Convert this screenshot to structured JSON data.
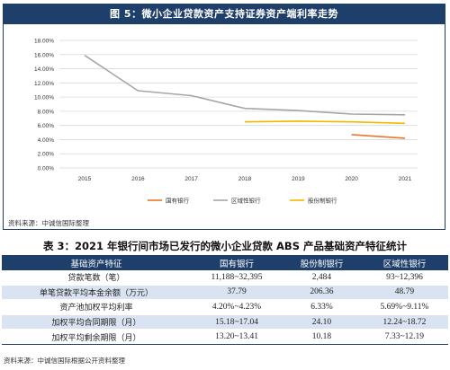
{
  "figure": {
    "title": "图 5：微小企业贷款资产支持证券资产端利率走势",
    "source": "资料来源：中诚信国际整理"
  },
  "chart_data": {
    "type": "line",
    "x": [
      "2015",
      "2016",
      "2017",
      "2018",
      "2019",
      "2020",
      "2021"
    ],
    "y_ticks": [
      "0.00%",
      "2.00%",
      "4.00%",
      "6.00%",
      "8.00%",
      "10.00%",
      "12.00%",
      "14.00%",
      "16.00%",
      "18.00%"
    ],
    "ylim": [
      0,
      18
    ],
    "grid": true,
    "legend_position": "bottom",
    "series": [
      {
        "name": "国有银行",
        "color": "#e8772e",
        "values": [
          null,
          null,
          null,
          null,
          null,
          4.7,
          4.2
        ]
      },
      {
        "name": "区域性银行",
        "color": "#a6a6a6",
        "values": [
          15.9,
          10.9,
          10.2,
          8.4,
          8.1,
          7.6,
          7.5
        ]
      },
      {
        "name": "股份制银行",
        "color": "#f5b800",
        "values": [
          null,
          null,
          null,
          6.5,
          6.6,
          6.5,
          6.3
        ]
      }
    ]
  },
  "table": {
    "title": "表 3：2021 年银行间市场已发行的微小企业贷款 ABS 产品基础资产特征统计",
    "headers": [
      "基础资产特征",
      "国有银行",
      "股份制银行",
      "区域性银行"
    ],
    "rows": [
      [
        "贷款笔数（笔）",
        "11,188~32,395",
        "2,484",
        "93~12,396"
      ],
      [
        "单笔贷款平均本金余额（万元）",
        "37.79",
        "206.36",
        "48.79"
      ],
      [
        "资产池加权平均利率",
        "4.20%~4.23%",
        "6.33%",
        "5.69%~9.11%"
      ],
      [
        "加权平均合同期限（月）",
        "15.18~17.04",
        "24.10",
        "12.24~18.72"
      ],
      [
        "加权平均剩余期限（月）",
        "13.20~13.41",
        "10.18",
        "7.33~12.19"
      ]
    ],
    "source": "资料来源：中诚信国际根据公开资料整理"
  }
}
